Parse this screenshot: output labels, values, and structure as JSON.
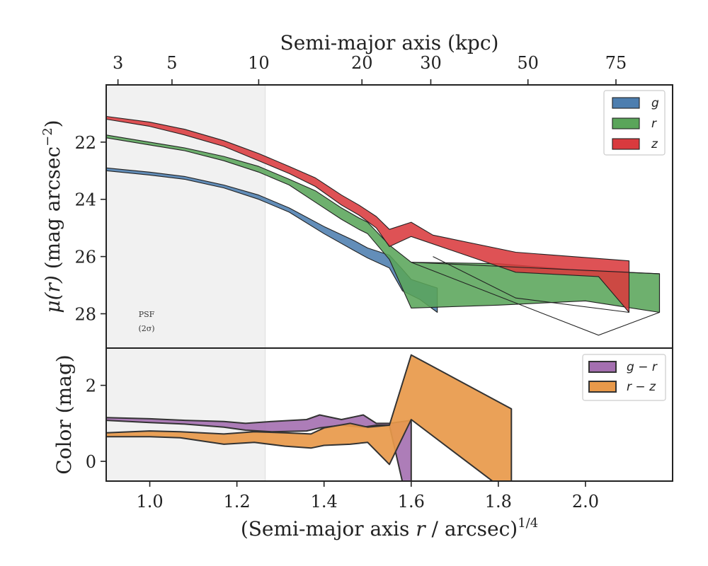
{
  "chart_data": [
    {
      "type": "area",
      "panel": "surface-brightness",
      "ylabel_main": "μ(r)",
      "ylabel_unit": " (mag arcsec",
      "ylabel_exp": "−2",
      "ylabel_close": ")",
      "top_axis_label": "Semi-major axis (kpc)",
      "top_ticks": [
        {
          "kpc": 3,
          "x": 0.927
        },
        {
          "kpc": 5,
          "x": 1.051
        },
        {
          "kpc": 10,
          "x": 1.25
        },
        {
          "kpc": 20,
          "x": 1.487
        },
        {
          "kpc": 30,
          "x": 1.645
        },
        {
          "kpc": 50,
          "x": 1.868
        },
        {
          "kpc": 75,
          "x": 2.07
        }
      ],
      "xlim": [
        0.9,
        2.2
      ],
      "ylim": [
        29.2,
        20.0
      ],
      "y_ticks": [
        22,
        24,
        26,
        28
      ],
      "psf_shade_x": [
        0.9,
        1.265
      ],
      "psf_label": [
        "PSF",
        "(2σ)"
      ],
      "legend_position": "top-right",
      "series": [
        {
          "name": "g",
          "color": "#4d7eaf",
          "upper": [
            [
              0.9,
              22.9
            ],
            [
              1.0,
              23.05
            ],
            [
              1.08,
              23.2
            ],
            [
              1.17,
              23.5
            ],
            [
              1.25,
              23.85
            ],
            [
              1.32,
              24.3
            ],
            [
              1.4,
              24.95
            ],
            [
              1.47,
              25.45
            ],
            [
              1.5,
              25.7
            ],
            [
              1.55,
              25.95
            ],
            [
              1.58,
              26.45
            ],
            [
              1.6,
              26.8
            ],
            [
              1.66,
              27.1
            ]
          ],
          "lower": [
            [
              0.9,
              23.0
            ],
            [
              1.0,
              23.15
            ],
            [
              1.08,
              23.3
            ],
            [
              1.17,
              23.6
            ],
            [
              1.25,
              24.0
            ],
            [
              1.32,
              24.45
            ],
            [
              1.4,
              25.2
            ],
            [
              1.47,
              25.8
            ],
            [
              1.5,
              26.05
            ],
            [
              1.55,
              26.4
            ],
            [
              1.58,
              27.2
            ],
            [
              1.62,
              27.5
            ],
            [
              1.66,
              27.95
            ]
          ]
        },
        {
          "name": "r",
          "color": "#5aa55a",
          "upper": [
            [
              0.9,
              21.75
            ],
            [
              1.0,
              22.0
            ],
            [
              1.08,
              22.2
            ],
            [
              1.17,
              22.5
            ],
            [
              1.25,
              22.85
            ],
            [
              1.32,
              23.3
            ],
            [
              1.38,
              23.7
            ],
            [
              1.44,
              24.3
            ],
            [
              1.48,
              24.65
            ],
            [
              1.5,
              24.8
            ],
            [
              1.55,
              25.6
            ],
            [
              1.6,
              26.2
            ],
            [
              1.8,
              26.25
            ],
            [
              2.0,
              26.5
            ],
            [
              2.17,
              26.6
            ]
          ],
          "lower": [
            [
              0.9,
              21.85
            ],
            [
              1.0,
              22.1
            ],
            [
              1.08,
              22.3
            ],
            [
              1.17,
              22.65
            ],
            [
              1.25,
              23.05
            ],
            [
              1.32,
              23.5
            ],
            [
              1.38,
              24.1
            ],
            [
              1.44,
              24.7
            ],
            [
              1.48,
              25.05
            ],
            [
              1.5,
              25.2
            ],
            [
              1.55,
              26.1
            ],
            [
              1.6,
              27.8
            ],
            [
              1.8,
              27.7
            ],
            [
              2.0,
              27.55
            ],
            [
              2.17,
              27.95
            ]
          ]
        },
        {
          "name": "z",
          "color": "#d93a3e",
          "upper": [
            [
              0.9,
              21.1
            ],
            [
              1.0,
              21.3
            ],
            [
              1.08,
              21.55
            ],
            [
              1.17,
              21.95
            ],
            [
              1.25,
              22.4
            ],
            [
              1.32,
              22.85
            ],
            [
              1.38,
              23.25
            ],
            [
              1.44,
              23.85
            ],
            [
              1.48,
              24.2
            ],
            [
              1.52,
              24.6
            ],
            [
              1.55,
              25.05
            ],
            [
              1.6,
              24.8
            ],
            [
              1.65,
              25.25
            ],
            [
              1.84,
              25.85
            ],
            [
              2.1,
              26.15
            ]
          ],
          "lower": [
            [
              0.9,
              21.2
            ],
            [
              1.0,
              21.45
            ],
            [
              1.08,
              21.75
            ],
            [
              1.17,
              22.15
            ],
            [
              1.25,
              22.65
            ],
            [
              1.32,
              23.1
            ],
            [
              1.38,
              23.55
            ],
            [
              1.44,
              24.2
            ],
            [
              1.48,
              24.55
            ],
            [
              1.52,
              25.0
            ],
            [
              1.55,
              25.65
            ],
            [
              1.6,
              25.3
            ],
            [
              1.84,
              26.55
            ],
            [
              2.03,
              26.7
            ],
            [
              2.1,
              27.95
            ]
          ]
        }
      ],
      "outlines": {
        "r_tail": [
          [
            1.6,
            26.2
          ],
          [
            2.17,
            26.6
          ],
          [
            2.17,
            27.95
          ],
          [
            2.03,
            28.75
          ],
          [
            1.6,
            26.2
          ]
        ],
        "z_diag": [
          [
            1.65,
            26.0
          ],
          [
            1.84,
            27.45
          ],
          [
            2.1,
            27.95
          ]
        ]
      }
    },
    {
      "type": "area",
      "panel": "color",
      "ylabel": "Color (mag)",
      "xlabel_main": "(Semi-major axis ",
      "xlabel_var": "r",
      "xlabel_rest": " / arcsec)",
      "xlabel_exp": "1/4",
      "xlim": [
        0.9,
        2.2
      ],
      "ylim": [
        -0.52,
        2.98
      ],
      "x_ticks": [
        1.0,
        1.2,
        1.4,
        1.6,
        1.8,
        2.0
      ],
      "x_tick_labels": [
        "1.0",
        "1.2",
        "1.4",
        "1.6",
        "1.8",
        "2.0"
      ],
      "y_ticks": [
        0,
        2
      ],
      "legend_position": "top-right",
      "series": [
        {
          "name": "g − r",
          "legend_lhs": "g",
          "legend_rhs": "r",
          "color": "#a46fb0",
          "upper": [
            [
              0.9,
              1.15
            ],
            [
              1.0,
              1.12
            ],
            [
              1.08,
              1.08
            ],
            [
              1.17,
              1.05
            ],
            [
              1.22,
              1.0
            ],
            [
              1.28,
              1.05
            ],
            [
              1.36,
              1.1
            ],
            [
              1.39,
              1.22
            ],
            [
              1.44,
              1.1
            ],
            [
              1.49,
              1.22
            ],
            [
              1.52,
              1.0
            ],
            [
              1.55,
              1.0
            ],
            [
              1.6,
              1.08
            ]
          ],
          "lower": [
            [
              0.9,
              1.08
            ],
            [
              1.0,
              1.02
            ],
            [
              1.08,
              0.98
            ],
            [
              1.17,
              0.9
            ],
            [
              1.22,
              0.82
            ],
            [
              1.28,
              0.78
            ],
            [
              1.36,
              0.8
            ],
            [
              1.39,
              0.88
            ],
            [
              1.44,
              0.95
            ],
            [
              1.49,
              0.9
            ],
            [
              1.52,
              0.95
            ],
            [
              1.55,
              0.95
            ],
            [
              1.58,
              -0.55
            ],
            [
              1.6,
              -0.55
            ]
          ]
        },
        {
          "name": "r − z",
          "legend_lhs": "r",
          "legend_rhs": "z",
          "color": "#e8994a",
          "upper": [
            [
              0.9,
              0.75
            ],
            [
              1.0,
              0.8
            ],
            [
              1.07,
              0.78
            ],
            [
              1.17,
              0.72
            ],
            [
              1.24,
              0.78
            ],
            [
              1.31,
              0.75
            ],
            [
              1.37,
              0.72
            ],
            [
              1.4,
              0.88
            ],
            [
              1.46,
              1.0
            ],
            [
              1.5,
              0.9
            ],
            [
              1.55,
              0.95
            ],
            [
              1.6,
              2.8
            ],
            [
              1.83,
              1.38
            ]
          ],
          "lower": [
            [
              0.9,
              0.65
            ],
            [
              1.0,
              0.65
            ],
            [
              1.07,
              0.62
            ],
            [
              1.17,
              0.45
            ],
            [
              1.24,
              0.5
            ],
            [
              1.31,
              0.4
            ],
            [
              1.37,
              0.35
            ],
            [
              1.4,
              0.42
            ],
            [
              1.46,
              0.45
            ],
            [
              1.5,
              0.5
            ],
            [
              1.55,
              -0.08
            ],
            [
              1.6,
              1.1
            ],
            [
              1.79,
              -0.55
            ],
            [
              1.83,
              -0.55
            ]
          ]
        }
      ]
    }
  ]
}
